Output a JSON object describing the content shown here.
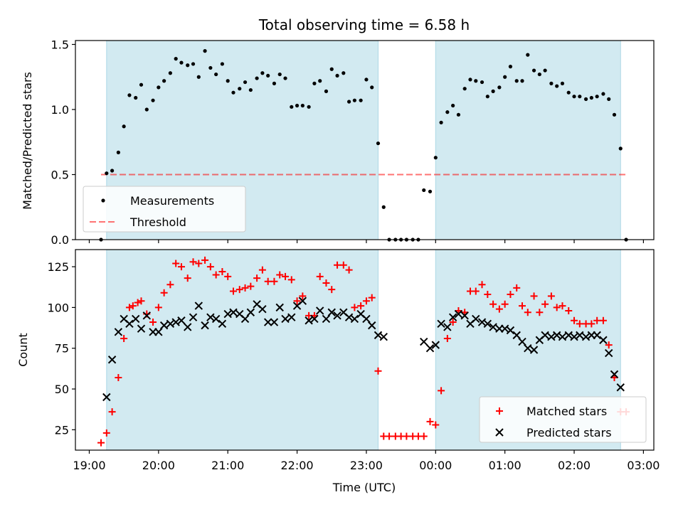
{
  "figure": {
    "title": "Total observing time = 6.58 h",
    "xlabel": "Time (UTC)",
    "x_tick_labels": [
      "19:00",
      "20:00",
      "21:00",
      "22:00",
      "23:00",
      "00:00",
      "01:00",
      "02:00",
      "03:00"
    ]
  },
  "colors": {
    "shade": "#add8e6",
    "threshold": "#ff0000",
    "measurement": "#000000",
    "matched": "#ff0000",
    "predicted": "#000000"
  },
  "chart_data": [
    {
      "type": "scatter",
      "ylabel": "Matched/Predicted stars",
      "y_ticks": [
        0.0,
        0.5,
        1.0,
        1.5
      ],
      "y_tick_labels": [
        "0.0",
        "0.5",
        "1.0",
        "1.5"
      ],
      "ylim": [
        0,
        1.53
      ],
      "xlim_hours": [
        18.8,
        27.15
      ],
      "x_unit": "hours since 00:00 of first night",
      "shaded_intervals_hours": [
        [
          19.25,
          23.17
        ],
        [
          24.0,
          26.67
        ]
      ],
      "threshold": {
        "name": "Threshold",
        "y": 0.5,
        "x_range_hours": [
          19.17,
          26.75
        ]
      },
      "legend": [
        "Measurements",
        "Threshold"
      ],
      "legend_position": "lower left",
      "series": [
        {
          "name": "Measurements",
          "x_hours": [
            19.17,
            19.25,
            19.33,
            19.42,
            19.5,
            19.58,
            19.67,
            19.75,
            19.83,
            19.92,
            20.0,
            20.08,
            20.17,
            20.25,
            20.33,
            20.42,
            20.5,
            20.58,
            20.67,
            20.75,
            20.83,
            20.92,
            21.0,
            21.08,
            21.17,
            21.25,
            21.33,
            21.42,
            21.5,
            21.58,
            21.67,
            21.75,
            21.83,
            21.92,
            22.0,
            22.08,
            22.17,
            22.25,
            22.33,
            22.42,
            22.5,
            22.58,
            22.67,
            22.75,
            22.83,
            22.92,
            23.0,
            23.08,
            23.17,
            23.25,
            23.33,
            23.42,
            23.5,
            23.58,
            23.67,
            23.75,
            23.83,
            23.92,
            24.0,
            24.08,
            24.17,
            24.25,
            24.33,
            24.42,
            24.5,
            24.58,
            24.67,
            24.75,
            24.83,
            24.92,
            25.0,
            25.08,
            25.17,
            25.25,
            25.33,
            25.42,
            25.5,
            25.58,
            25.67,
            25.75,
            25.83,
            25.92,
            26.0,
            26.08,
            26.17,
            26.25,
            26.33,
            26.42,
            26.5,
            26.58,
            26.67,
            26.75
          ],
          "y": [
            0.0,
            0.51,
            0.53,
            0.67,
            0.87,
            1.11,
            1.09,
            1.19,
            1.0,
            1.07,
            1.17,
            1.22,
            1.28,
            1.39,
            1.36,
            1.34,
            1.35,
            1.25,
            1.45,
            1.32,
            1.27,
            1.35,
            1.22,
            1.13,
            1.16,
            1.21,
            1.15,
            1.24,
            1.28,
            1.26,
            1.2,
            1.27,
            1.24,
            1.02,
            1.03,
            1.03,
            1.02,
            1.2,
            1.22,
            1.14,
            1.31,
            1.26,
            1.28,
            1.06,
            1.07,
            1.07,
            1.23,
            1.17,
            0.74,
            0.25,
            0.0,
            0.0,
            0.0,
            0.0,
            0.0,
            0.0,
            0.38,
            0.37,
            0.63,
            0.9,
            0.98,
            1.03,
            0.96,
            1.16,
            1.23,
            1.22,
            1.21,
            1.1,
            1.14,
            1.17,
            1.25,
            1.33,
            1.22,
            1.22,
            1.42,
            1.3,
            1.27,
            1.3,
            1.2,
            1.18,
            1.2,
            1.13,
            1.1,
            1.1,
            1.08,
            1.09,
            1.1,
            1.12,
            1.08,
            0.96,
            0.7,
            0.0
          ]
        }
      ]
    },
    {
      "type": "scatter",
      "ylabel": "Count",
      "y_ticks": [
        25,
        50,
        75,
        100,
        125
      ],
      "y_tick_labels": [
        "25",
        "50",
        "75",
        "100",
        "125"
      ],
      "ylim": [
        12.5,
        135.5
      ],
      "xlim_hours": [
        18.8,
        27.15
      ],
      "x_unit": "hours since 00:00 of first night",
      "shaded_intervals_hours": [
        [
          19.25,
          23.17
        ],
        [
          24.0,
          26.67
        ]
      ],
      "legend": [
        "Matched stars",
        "Predicted stars"
      ],
      "legend_position": "lower right",
      "series": [
        {
          "name": "Matched stars",
          "marker": "+",
          "x_hours": [
            19.17,
            19.25,
            19.33,
            19.42,
            19.5,
            19.58,
            19.63,
            19.7,
            19.75,
            19.83,
            19.92,
            20.0,
            20.08,
            20.17,
            20.25,
            20.33,
            20.42,
            20.5,
            20.58,
            20.67,
            20.75,
            20.83,
            20.92,
            21.0,
            21.08,
            21.17,
            21.25,
            21.33,
            21.42,
            21.5,
            21.58,
            21.67,
            21.75,
            21.83,
            21.92,
            22.0,
            22.08,
            22.17,
            22.25,
            22.33,
            22.42,
            22.5,
            22.58,
            22.67,
            22.75,
            22.83,
            22.92,
            23.0,
            23.08,
            23.17,
            23.25,
            23.33,
            23.42,
            23.5,
            23.58,
            23.67,
            23.75,
            23.83,
            23.92,
            24.0,
            24.08,
            24.17,
            24.25,
            24.33,
            24.42,
            24.5,
            24.58,
            24.67,
            24.75,
            24.83,
            24.92,
            25.0,
            25.08,
            25.17,
            25.25,
            25.33,
            25.42,
            25.5,
            25.58,
            25.67,
            25.75,
            25.83,
            25.92,
            26.0,
            26.08,
            26.17,
            26.25,
            26.33,
            26.42,
            26.5,
            26.58,
            26.67,
            26.75
          ],
          "y": [
            17,
            23,
            36,
            57,
            81,
            100,
            101,
            103,
            104,
            96,
            91,
            100,
            109,
            114,
            127,
            125,
            118,
            128,
            127,
            129,
            125,
            120,
            122,
            119,
            110,
            111,
            112,
            113,
            118,
            123,
            116,
            116,
            120,
            119,
            117,
            104,
            107,
            95,
            95,
            119,
            115,
            111,
            126,
            126,
            123,
            100,
            101,
            104,
            106,
            61,
            21,
            21,
            21,
            21,
            21,
            21,
            21,
            21,
            30,
            28,
            49,
            81,
            91,
            98,
            97,
            110,
            110,
            114,
            108,
            102,
            99,
            102,
            108,
            112,
            101,
            97,
            107,
            97,
            102,
            107,
            100,
            101,
            98,
            92,
            90,
            90,
            90,
            92,
            92,
            77,
            57,
            36,
            36
          ]
        },
        {
          "name": "Predicted stars",
          "marker": "x",
          "x_hours": [
            19.25,
            19.33,
            19.42,
            19.5,
            19.58,
            19.67,
            19.75,
            19.83,
            19.92,
            20.0,
            20.08,
            20.17,
            20.25,
            20.33,
            20.42,
            20.5,
            20.58,
            20.67,
            20.75,
            20.83,
            20.92,
            21.0,
            21.08,
            21.17,
            21.25,
            21.33,
            21.42,
            21.5,
            21.58,
            21.67,
            21.75,
            21.83,
            21.92,
            22.0,
            22.08,
            22.17,
            22.25,
            22.33,
            22.42,
            22.5,
            22.58,
            22.67,
            22.75,
            22.83,
            22.92,
            23.0,
            23.08,
            23.17,
            23.25,
            23.83,
            23.92,
            24.0,
            24.08,
            24.17,
            24.25,
            24.33,
            24.42,
            24.5,
            24.58,
            24.67,
            24.75,
            24.83,
            24.92,
            25.0,
            25.08,
            25.17,
            25.25,
            25.33,
            25.42,
            25.5,
            25.58,
            25.67,
            25.75,
            25.83,
            25.92,
            26.0,
            26.08,
            26.17,
            26.25,
            26.33,
            26.42,
            26.5,
            26.58,
            26.67
          ],
          "y": [
            45,
            68,
            85,
            93,
            90,
            93,
            87,
            95,
            85,
            85,
            89,
            90,
            91,
            92,
            88,
            94,
            101,
            89,
            94,
            93,
            90,
            96,
            97,
            96,
            93,
            97,
            102,
            99,
            91,
            91,
            100,
            93,
            94,
            101,
            104,
            92,
            93,
            98,
            93,
            97,
            95,
            97,
            94,
            93,
            96,
            93,
            89,
            83,
            82,
            79,
            75,
            77,
            90,
            88,
            94,
            96,
            95,
            90,
            93,
            91,
            90,
            88,
            87,
            87,
            86,
            83,
            79,
            75,
            74,
            80,
            83,
            82,
            83,
            82,
            83,
            82,
            83,
            82,
            83,
            83,
            80,
            72,
            59,
            51
          ]
        }
      ]
    }
  ]
}
